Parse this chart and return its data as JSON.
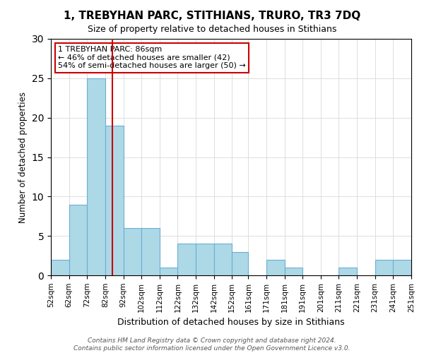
{
  "title": "1, TREBYHAN PARC, STITHIANS, TRURO, TR3 7DQ",
  "subtitle": "Size of property relative to detached houses in Stithians",
  "xlabel": "Distribution of detached houses by size in Stithians",
  "ylabel": "Number of detached properties",
  "bin_labels": [
    "52sqm",
    "62sqm",
    "72sqm",
    "82sqm",
    "92sqm",
    "102sqm",
    "112sqm",
    "122sqm",
    "132sqm",
    "142sqm",
    "152sqm",
    "161sqm",
    "171sqm",
    "181sqm",
    "191sqm",
    "201sqm",
    "211sqm",
    "221sqm",
    "231sqm",
    "241sqm",
    "251sqm"
  ],
  "bin_edges": [
    52,
    62,
    72,
    82,
    92,
    102,
    112,
    122,
    132,
    142,
    152,
    161,
    171,
    181,
    191,
    201,
    211,
    221,
    231,
    241,
    251
  ],
  "bar_values": [
    2,
    9,
    25,
    19,
    6,
    6,
    1,
    4,
    4,
    4,
    3,
    0,
    2,
    1,
    0,
    0,
    1,
    0,
    2,
    2
  ],
  "bar_color": "#ADD8E6",
  "bar_edge_color": "#6baed6",
  "vline_x": 86,
  "vline_color": "#cc0000",
  "annotation_title": "1 TREBYHAN PARC: 86sqm",
  "annotation_line1": "← 46% of detached houses are smaller (42)",
  "annotation_line2": "54% of semi-detached houses are larger (50) →",
  "ylim": [
    0,
    30
  ],
  "yticks": [
    0,
    5,
    10,
    15,
    20,
    25,
    30
  ],
  "footer1": "Contains HM Land Registry data © Crown copyright and database right 2024.",
  "footer2": "Contains public sector information licensed under the Open Government Licence v3.0."
}
